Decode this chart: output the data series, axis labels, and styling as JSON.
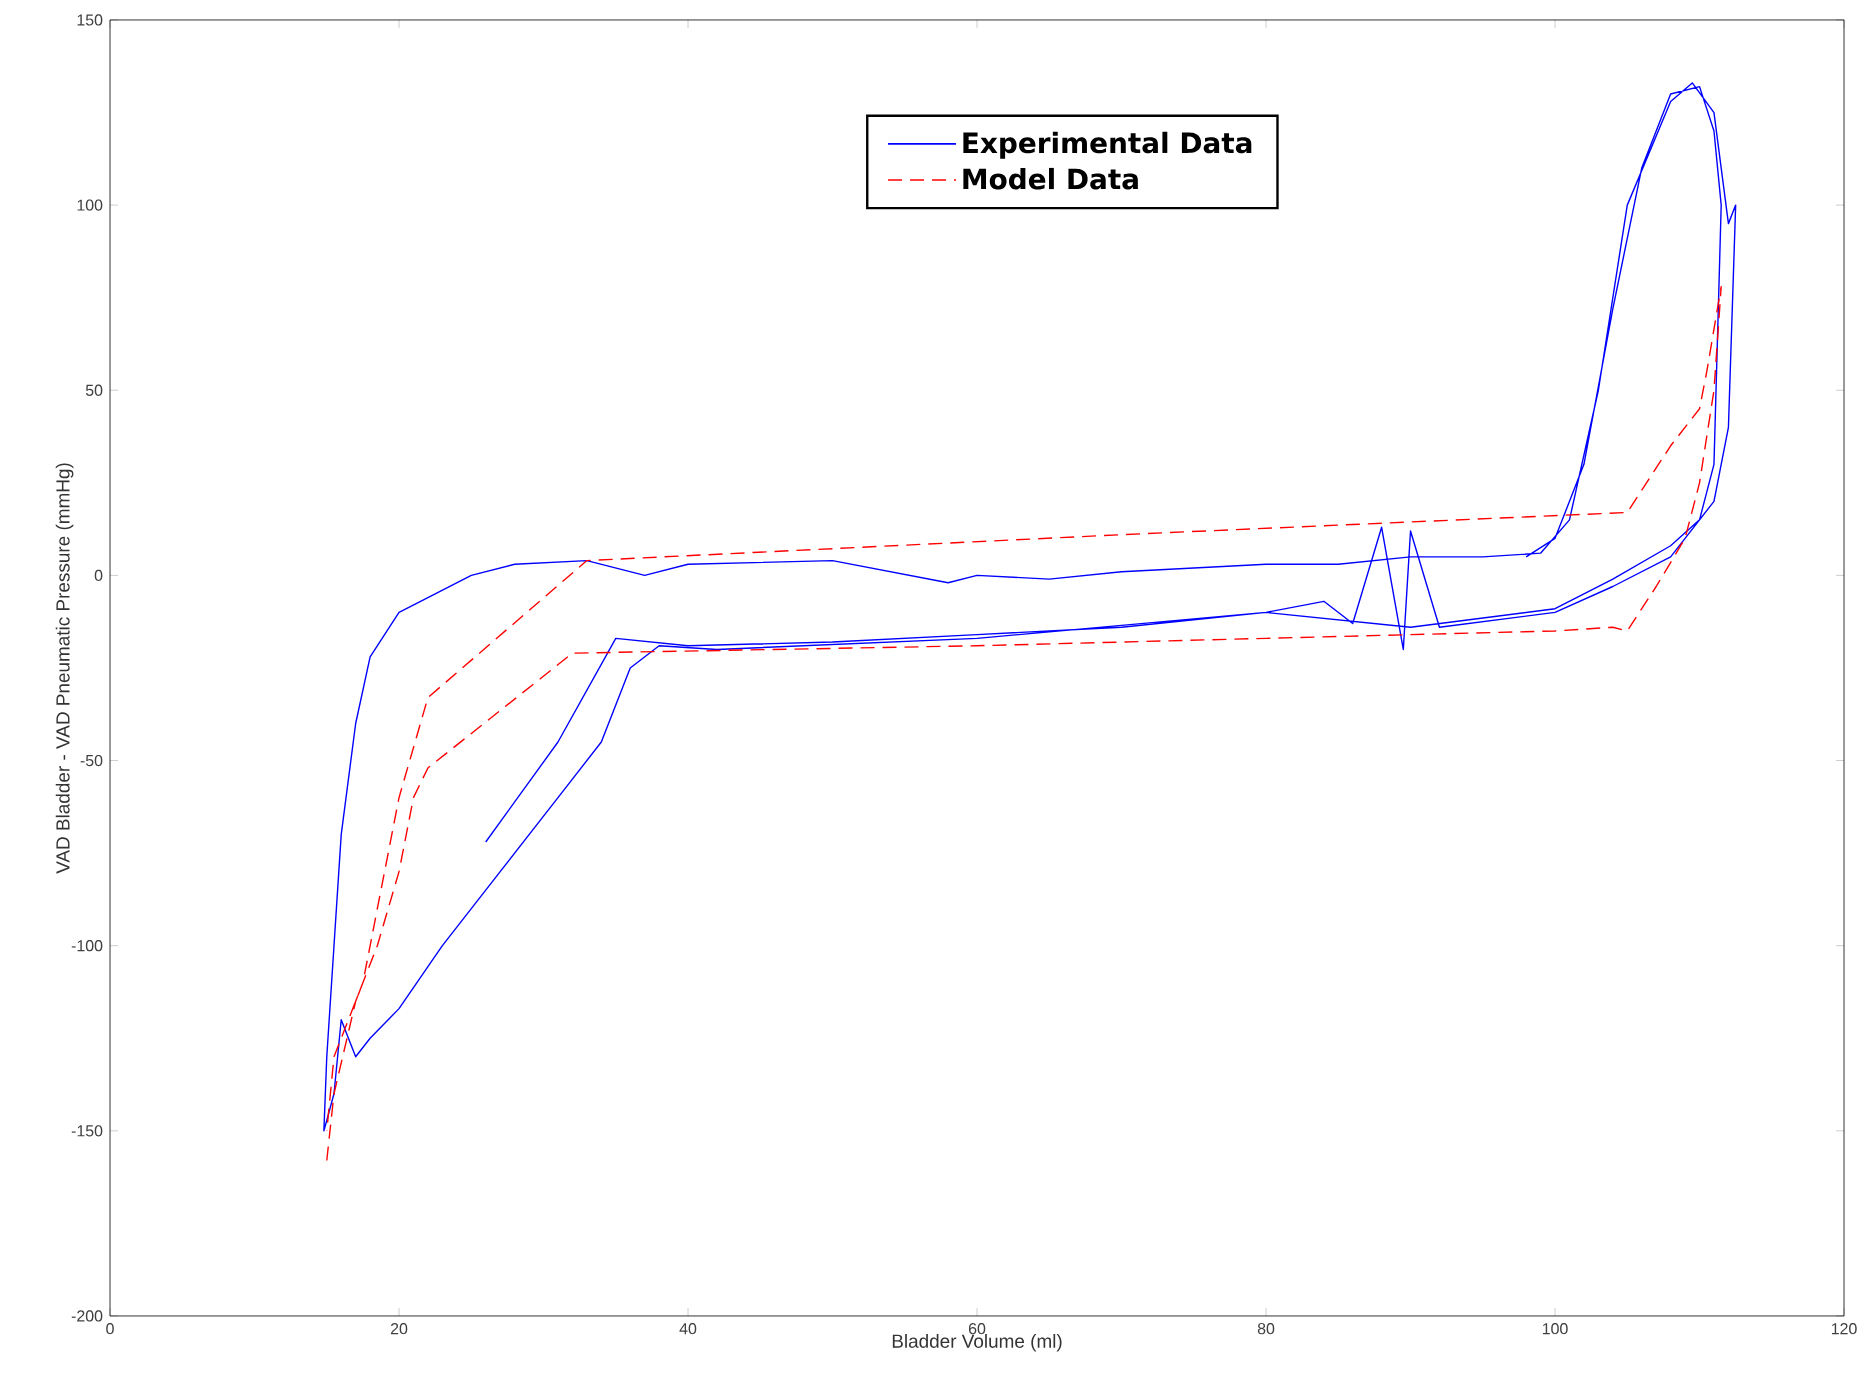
{
  "chart_data": {
    "type": "line",
    "xlabel": "Bladder Volume (ml)",
    "ylabel": "VAD Bladder - VAD Pneumatic Pressure (mmHg)",
    "xlim": [
      0,
      120
    ],
    "xticks": [
      0,
      20,
      40,
      60,
      80,
      100,
      120
    ],
    "ylim": [
      -200,
      150
    ],
    "yticks": [
      -200,
      -150,
      -100,
      -50,
      0,
      50,
      100,
      150
    ],
    "grid": false,
    "legend": "top right",
    "series": [
      {
        "name": "Experimental Data",
        "color": "#0000ff",
        "line_style": "solid",
        "x": [
          26,
          31,
          35,
          40,
          50,
          60,
          70,
          80,
          84,
          86,
          88,
          89.5,
          90,
          92,
          100,
          104,
          108,
          111,
          112,
          112.5,
          112,
          111,
          109.5,
          108,
          105,
          103,
          101,
          99,
          95,
          90,
          85,
          80,
          70,
          65,
          60,
          58,
          50,
          40,
          37,
          33,
          28,
          25,
          22,
          20,
          18,
          17,
          16,
          15.5,
          15,
          14.8,
          15.5,
          16,
          17,
          18,
          20,
          23,
          27,
          31,
          34,
          36,
          38,
          42,
          60,
          80,
          90,
          100,
          104,
          108,
          110,
          111,
          111.5,
          111,
          110,
          108,
          106,
          104,
          102,
          100,
          98
        ],
        "values": [
          -72,
          -45,
          -17,
          -19,
          -18,
          -16,
          -14,
          -10,
          -7,
          -13,
          13,
          -20,
          12,
          -14,
          -10,
          -3,
          5,
          20,
          40,
          100,
          95,
          125,
          133,
          128,
          100,
          50,
          15,
          6,
          5,
          5,
          3,
          3,
          1,
          -1,
          0,
          -2,
          4,
          3,
          0,
          4,
          3,
          0,
          -6,
          -10,
          -22,
          -40,
          -70,
          -100,
          -130,
          -150,
          -140,
          -120,
          -130,
          -125,
          -117,
          -100,
          -80,
          -60,
          -45,
          -25,
          -19,
          -20,
          -17,
          -10,
          -14,
          -9,
          -1,
          8,
          15,
          30,
          100,
          120,
          132,
          130,
          110,
          72,
          30,
          10,
          5
        ]
      },
      {
        "name": "Model Data",
        "color": "#ff0000",
        "line_style": "dashed",
        "x": [
          15,
          15.5,
          17,
          18.5,
          20,
          21,
          22,
          32,
          60,
          80,
          100,
          104,
          105,
          107,
          109,
          110,
          111,
          111.5,
          110.5,
          110,
          108,
          105,
          70,
          33,
          22,
          20,
          19,
          17.5,
          16.5,
          15.5,
          15
        ],
        "values": [
          -158,
          -140,
          -115,
          -100,
          -80,
          -60,
          -52,
          -21,
          -19,
          -17,
          -15,
          -14,
          -15,
          -3,
          10,
          25,
          50,
          78,
          55,
          45,
          35,
          17,
          11,
          4,
          -33,
          -60,
          -80,
          -110,
          -120,
          -130,
          -150
        ]
      }
    ]
  }
}
